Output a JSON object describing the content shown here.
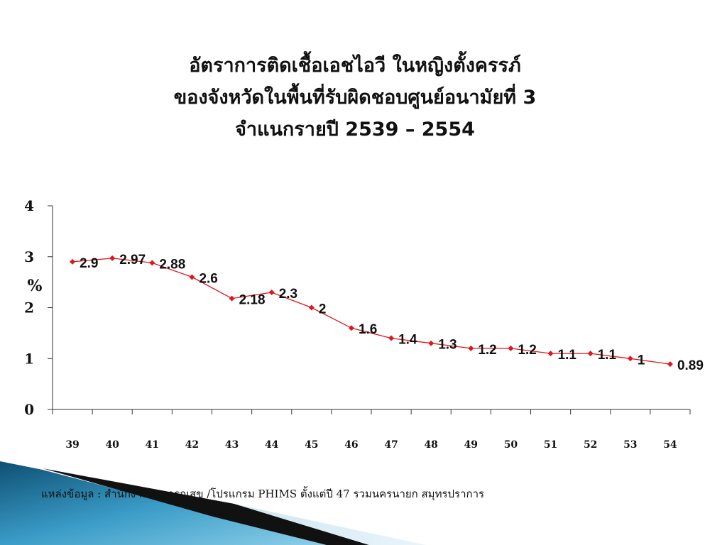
{
  "title": {
    "line1": "อัตราการติดเชื้อเอชไอวี ในหญิงตั้งครรภ์",
    "line2": "ของจังหวัดในพื้นที่รับผิดชอบศูนย์อนามัยที่ 3",
    "line3": "จำแนกรายปี 2539 – 2554"
  },
  "source_note": "แหล่งข้อมูล : สำนักงานสาธารณสุข /โปรแกรม PHIMS ตั้งแต่ปี 47 รวมนครนายก สมุทรปราการ",
  "chart_data": {
    "type": "line",
    "title": "อัตราการติดเชื้อเอชไอวี ในหญิงตั้งครรภ์ ของจังหวัดในพื้นที่รับผิดชอบศูนย์อนามัยที่ 3 จำแนกรายปี 2539 – 2554",
    "xlabel": "",
    "ylabel": "%",
    "categories": [
      "39",
      "40",
      "41",
      "42",
      "43",
      "44",
      "45",
      "46",
      "47",
      "48",
      "49",
      "50",
      "51",
      "52",
      "53",
      "54"
    ],
    "values": [
      2.9,
      2.97,
      2.88,
      2.6,
      2.18,
      2.3,
      2,
      1.6,
      1.4,
      1.3,
      1.2,
      1.2,
      1.1,
      1.1,
      1,
      0.89
    ],
    "data_labels": [
      "2.9",
      "2.97",
      "2.88",
      "2.6",
      "2.18",
      "2.3",
      "2",
      "1.6",
      "1.4",
      "1.3",
      "1.2",
      "1.2",
      "1.1",
      "1.1",
      "1",
      "0.89"
    ],
    "ylim": [
      0,
      4
    ],
    "yticks": [
      "0",
      "1",
      "2",
      "3",
      "4"
    ],
    "grid": false,
    "legend": "none",
    "line_color": "#e0161b",
    "marker": "diamond"
  }
}
